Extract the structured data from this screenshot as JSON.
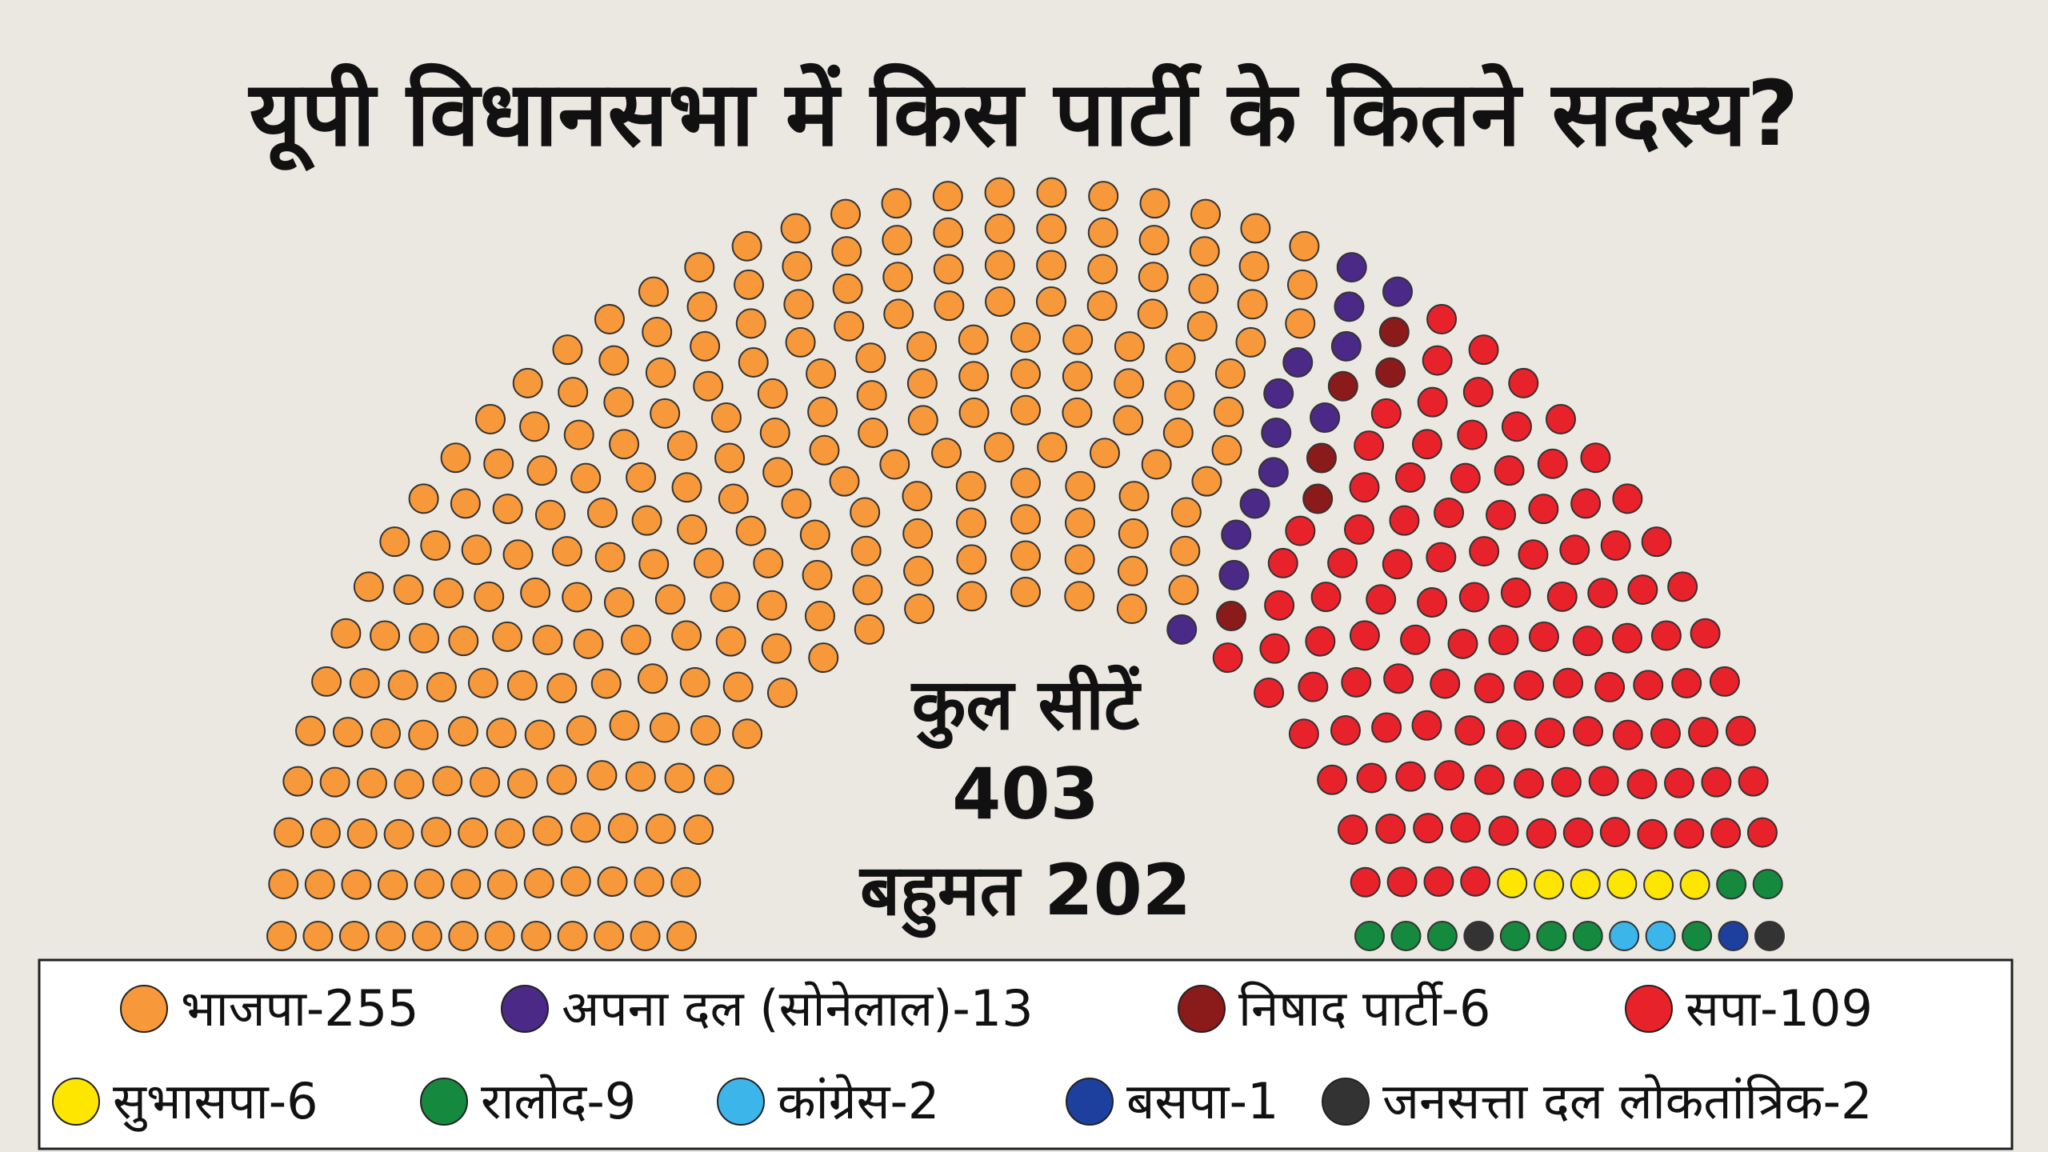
{
  "chart_data": {
    "type": "parliament",
    "title": "यूपी विधानसभा में किस पार्टी के कितने सदस्य?",
    "total_label": "कुल सीटें",
    "total": 403,
    "majority": {
      "value": 202,
      "label": "बहुमत 202"
    },
    "series": [
      {
        "name": "भाजपा-255",
        "color": "#f7993a",
        "seats": 255
      },
      {
        "name": "अपना दल (सोनेलाल)-13",
        "color": "#4a2a86",
        "seats": 13
      },
      {
        "name": "निषाद पार्टी-6",
        "color": "#8b1a1a",
        "seats": 6
      },
      {
        "name": "सपा-109",
        "color": "#e8222a",
        "seats": 109
      },
      {
        "name": "सुभासपा-6",
        "color": "#ffe600",
        "seats": 6
      },
      {
        "name": "रालोद-9",
        "color": "#15893e",
        "seats": 9
      },
      {
        "name": "कांग्रेस-2",
        "color": "#3cb6ea",
        "seats": 2
      },
      {
        "name": "बसपा-1",
        "color": "#1d3f9e",
        "seats": 1
      },
      {
        "name": "जनसत्ता दल लोकतांत्रिक-2",
        "color": "#333333",
        "seats": 2
      }
    ]
  }
}
